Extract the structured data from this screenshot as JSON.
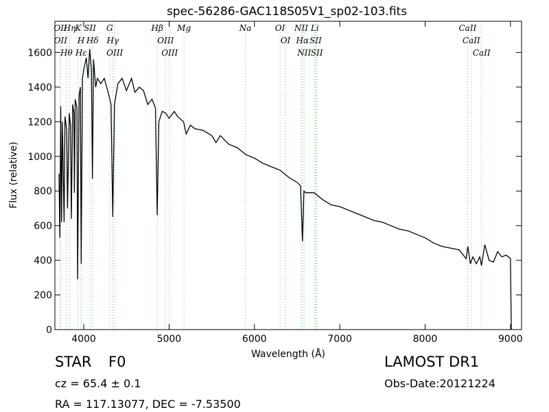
{
  "chart_data": {
    "type": "line",
    "title": "spec-56286-GAC118S05V1_sp02-103.fits",
    "x_label": "Wavelength (Å)",
    "y_label": "Flux (relative)",
    "xlim": [
      3662,
      9130
    ],
    "ylim": [
      0,
      1780
    ],
    "xticks": [
      4000,
      5000,
      6000,
      7000,
      8000,
      9000
    ],
    "yticks": [
      0,
      200,
      400,
      600,
      800,
      1000,
      1200,
      1400,
      1600
    ],
    "series": [
      {
        "color": "#000000",
        "x": [
          3710,
          3720,
          3730,
          3740,
          3750,
          3770,
          3780,
          3800,
          3810,
          3830,
          3845,
          3855,
          3870,
          3885,
          3890,
          3900,
          3920,
          3928,
          3945,
          3960,
          3970,
          3985,
          4000,
          4030,
          4050,
          4070,
          4090,
          4102,
          4115,
          4140,
          4160,
          4200,
          4240,
          4280,
          4320,
          4340,
          4360,
          4400,
          4450,
          4500,
          4560,
          4600,
          4650,
          4700,
          4750,
          4800,
          4840,
          4861,
          4880,
          4920,
          4960,
          5000,
          5060,
          5100,
          5170,
          5200,
          5250,
          5300,
          5400,
          5500,
          5550,
          5600,
          5700,
          5800,
          5900,
          6000,
          6100,
          6200,
          6300,
          6400,
          6500,
          6540,
          6563,
          6580,
          6600,
          6700,
          6800,
          6900,
          7000,
          7100,
          7200,
          7300,
          7400,
          7500,
          7600,
          7700,
          7800,
          7900,
          8000,
          8100,
          8200,
          8300,
          8400,
          8480,
          8500,
          8530,
          8560,
          8600,
          8640,
          8660,
          8700,
          8750,
          8800,
          8850,
          8900,
          8950,
          9000,
          9010
        ],
        "values": [
          900,
          530,
          1290,
          620,
          1200,
          620,
          1230,
          1150,
          700,
          1250,
          1180,
          640,
          1300,
          1250,
          790,
          1330,
          1280,
          290,
          1350,
          1400,
          380,
          1450,
          1500,
          1570,
          1450,
          1620,
          1500,
          870,
          1560,
          1400,
          1450,
          1420,
          1450,
          1380,
          1300,
          650,
          1300,
          1420,
          1450,
          1380,
          1450,
          1370,
          1400,
          1380,
          1300,
          1330,
          1280,
          660,
          1200,
          1260,
          1250,
          1220,
          1260,
          1230,
          1200,
          1130,
          1180,
          1160,
          1150,
          1120,
          1080,
          1120,
          1070,
          1050,
          1010,
          990,
          960,
          940,
          920,
          880,
          850,
          830,
          510,
          800,
          790,
          790,
          750,
          720,
          710,
          690,
          670,
          650,
          630,
          620,
          600,
          580,
          570,
          550,
          530,
          500,
          480,
          470,
          460,
          410,
          480,
          380,
          420,
          380,
          420,
          370,
          490,
          400,
          390,
          450,
          420,
          430,
          410,
          0
        ]
      }
    ],
    "annotations": [
      {
        "x": 3727,
        "label": "OII"
      },
      {
        "x": 3729,
        "label": "OII"
      },
      {
        "x": 3798,
        "label": "Hθ"
      },
      {
        "x": 3835,
        "label": "Hη"
      },
      {
        "x": 3934,
        "label": "K"
      },
      {
        "x": 3968,
        "label": "H"
      },
      {
        "x": 3970,
        "label": "Hε"
      },
      {
        "x": 4072,
        "label": "SII"
      },
      {
        "x": 4102,
        "label": "Hδ"
      },
      {
        "x": 4304,
        "label": "G"
      },
      {
        "x": 4340,
        "label": "Hγ"
      },
      {
        "x": 4363,
        "label": "OIII"
      },
      {
        "x": 4861,
        "label": "Hβ"
      },
      {
        "x": 4959,
        "label": "OIII"
      },
      {
        "x": 5007,
        "label": "OIII"
      },
      {
        "x": 5175,
        "label": "Mg"
      },
      {
        "x": 5893,
        "label": "Na"
      },
      {
        "x": 6300,
        "label": "OI"
      },
      {
        "x": 6364,
        "label": "OI"
      },
      {
        "x": 6548,
        "label": "NII"
      },
      {
        "x": 6563,
        "label": "Hα"
      },
      {
        "x": 6583,
        "label": "NII"
      },
      {
        "x": 6708,
        "label": "Li"
      },
      {
        "x": 6717,
        "label": "SII"
      },
      {
        "x": 6731,
        "label": "SII"
      },
      {
        "x": 8498,
        "label": "CaII"
      },
      {
        "x": 8542,
        "label": "CaII"
      },
      {
        "x": 8662,
        "label": "CaII"
      }
    ],
    "footer": {
      "object_class": "STAR",
      "subclass": "F0",
      "redshift": "cz = 65.4 ± 0.1",
      "position": "RA = 117.13077, DEC = -7.53500",
      "survey": "LAMOST DR1",
      "obs_date": "Obs-Date:20121224"
    }
  }
}
